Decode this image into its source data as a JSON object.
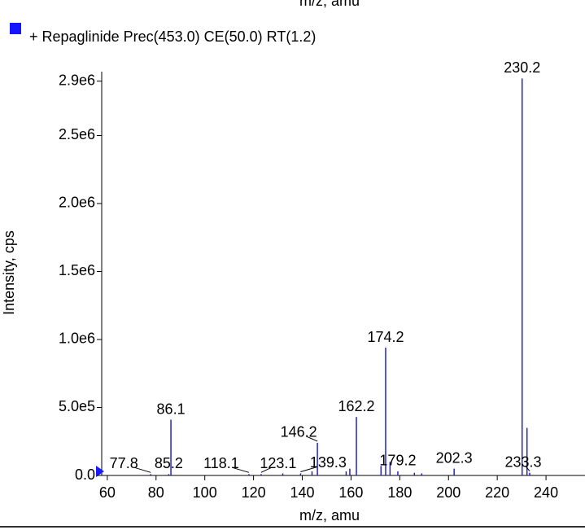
{
  "chart_data": {
    "type": "stick",
    "cropped_header": "m/z, amu",
    "xlabel": "m/z, amu",
    "ylabel": "Intensity, cps",
    "xlim": [
      57.7,
      256
    ],
    "ylim": [
      0,
      2970000
    ],
    "xticks": [
      60,
      80,
      100,
      120,
      140,
      160,
      180,
      200,
      220,
      240
    ],
    "yticks": [
      {
        "value": 0,
        "label": "0.0"
      },
      {
        "value": 500000,
        "label": "5.0e5"
      },
      {
        "value": 1000000,
        "label": "1.0e6"
      },
      {
        "value": 1500000,
        "label": "1.5e6"
      },
      {
        "value": 2000000,
        "label": "2.0e6"
      },
      {
        "value": 2500000,
        "label": "2.5e6"
      },
      {
        "value": 2900000,
        "label": "2.9e6"
      }
    ],
    "series": [
      {
        "name": "+ Repaglinide Prec(453.0) CE(50.0) RT(1.2)",
        "color": "#2222cc",
        "x": [
          77.8,
          85.2,
          86.1,
          118.1,
          123.1,
          132.0,
          139.3,
          144.0,
          146.2,
          158.0,
          159.5,
          162.2,
          172.3,
          174.2,
          176.0,
          179.2,
          186.0,
          189.0,
          202.3,
          230.2,
          232.2,
          233.3
        ],
        "values": [
          10000,
          10000,
          410000,
          10000,
          10000,
          15000,
          15000,
          30000,
          240000,
          30000,
          50000,
          430000,
          70000,
          940000,
          100000,
          30000,
          20000,
          15000,
          50000,
          2920000,
          350000,
          20000
        ],
        "show_label": [
          true,
          true,
          true,
          true,
          true,
          false,
          true,
          false,
          true,
          false,
          false,
          true,
          false,
          true,
          false,
          true,
          false,
          false,
          true,
          true,
          false,
          true
        ]
      }
    ]
  }
}
